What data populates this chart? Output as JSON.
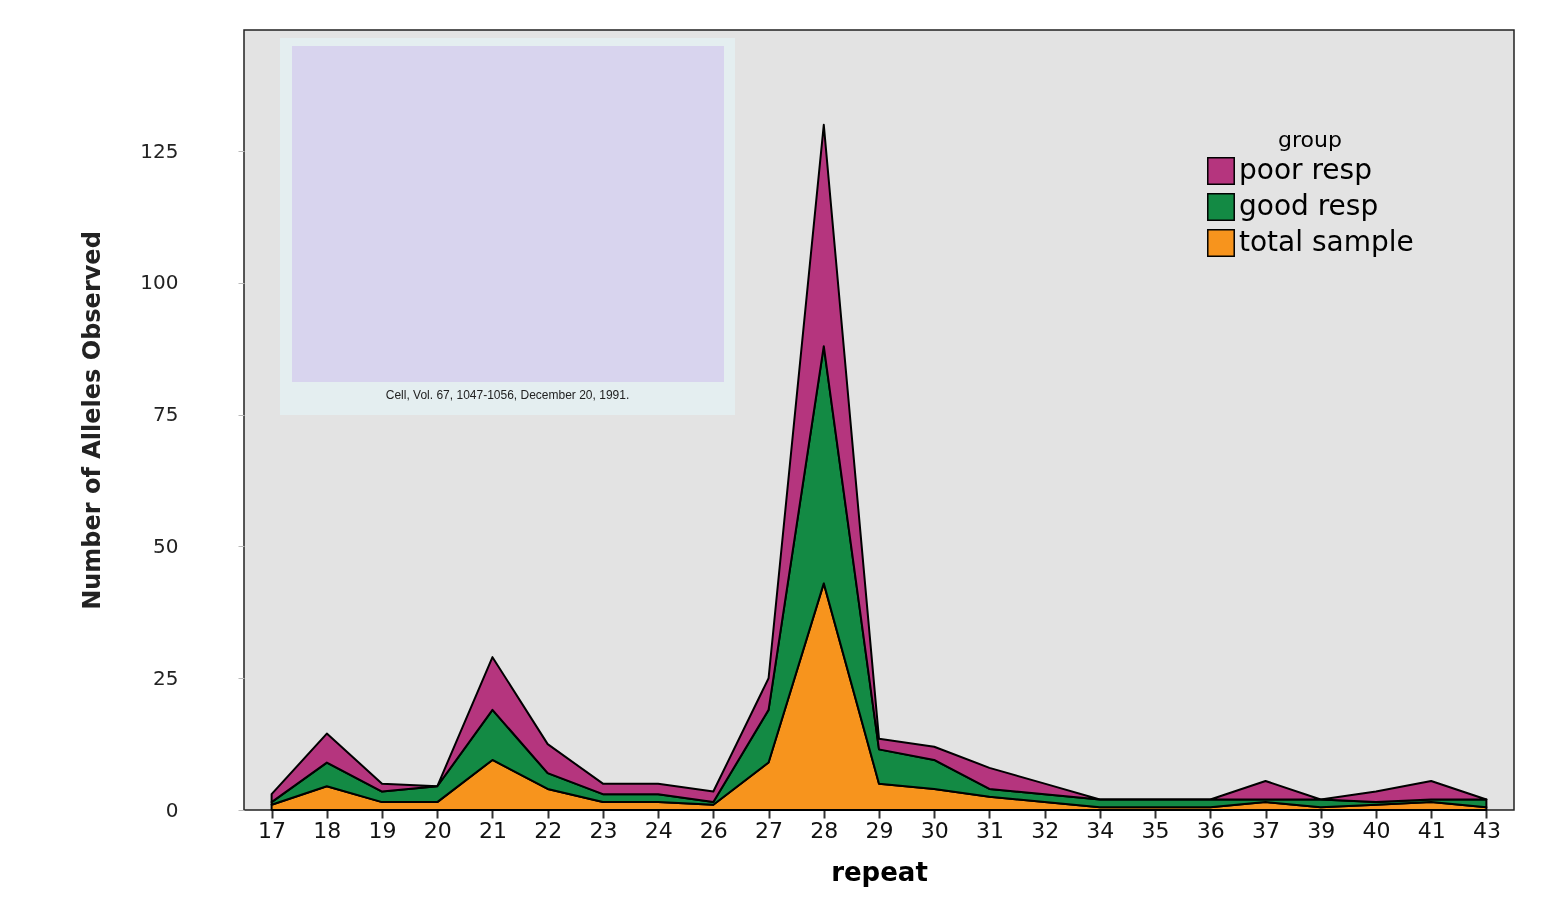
{
  "chart_data": {
    "type": "area",
    "stacked": true,
    "xlabel": "repeat",
    "ylabel": "Number of Alleles Observed",
    "legend_title": "group",
    "categories": [
      "17",
      "18",
      "19",
      "20",
      "21",
      "22",
      "23",
      "24",
      "26",
      "27",
      "28",
      "29",
      "30",
      "31",
      "32",
      "34",
      "35",
      "36",
      "37",
      "39",
      "40",
      "41",
      "43"
    ],
    "series": [
      {
        "name": "total sample",
        "color": "#f7941d",
        "values": [
          1,
          4.5,
          1.5,
          1.5,
          9.5,
          4,
          1.5,
          1.5,
          1,
          9,
          43,
          5,
          4,
          2.5,
          1.5,
          0.5,
          0.5,
          0.5,
          1.5,
          0.5,
          1,
          1.5,
          0.5
        ]
      },
      {
        "name": "good resp",
        "color": "#138a44",
        "values": [
          0.5,
          4.5,
          2,
          3,
          9.5,
          3,
          1.5,
          1.5,
          0.5,
          10,
          45,
          6.5,
          5.5,
          1.5,
          1.5,
          1.5,
          1.5,
          1.5,
          0.5,
          1.5,
          0.5,
          0.5,
          1.5
        ]
      },
      {
        "name": "poor resp",
        "color": "#b5357e",
        "values": [
          1.5,
          5.5,
          1.5,
          0,
          10,
          5.5,
          2,
          2,
          2,
          6,
          42,
          2,
          2.5,
          4,
          2,
          0,
          0,
          0,
          3.5,
          0,
          2,
          3.5,
          0
        ]
      }
    ],
    "ylim": [
      0,
      148
    ],
    "yticks": [
      0,
      25,
      50,
      75,
      100,
      125
    ],
    "grid": false,
    "legend": "top right",
    "annotations": [
      "Cell, Vol. 67, 1047-1056, December 20, 1991."
    ]
  }
}
